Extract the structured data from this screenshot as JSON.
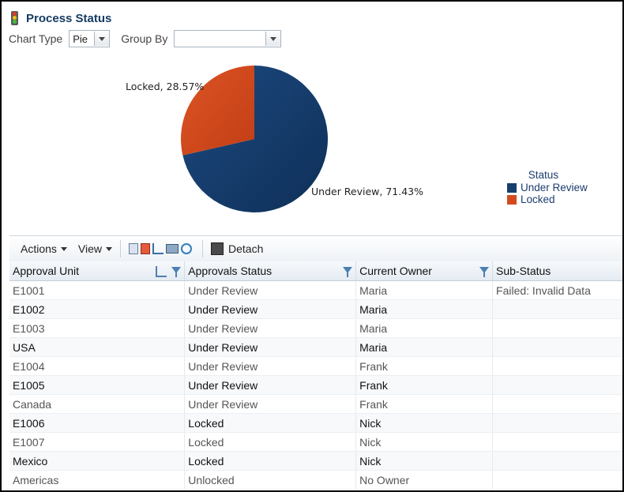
{
  "header": {
    "title": "Process Status",
    "icon": "traffic-light-icon"
  },
  "controls": {
    "chart_type_label": "Chart Type",
    "chart_type_value": "Pie",
    "group_by_label": "Group By",
    "group_by_value": ""
  },
  "chart_data": {
    "type": "pie",
    "categories": [
      "Under Review",
      "Locked"
    ],
    "values": [
      71.43,
      28.57
    ],
    "labels": [
      "Under Review, 71.43%",
      "Locked, 28.57%"
    ],
    "colors": [
      "#173f6e",
      "#d44a1f"
    ],
    "legend_title": "Status",
    "legend_position": "right"
  },
  "toolbar": {
    "actions_label": "Actions",
    "view_label": "View",
    "detach_label": "Detach"
  },
  "table": {
    "columns": [
      "Approval Unit",
      "Approvals Status",
      "Current Owner",
      "Sub-Status"
    ],
    "rows": [
      [
        "E1001",
        "Under Review",
        "Maria",
        "Failed: Invalid Data"
      ],
      [
        "E1002",
        "Under Review",
        "Maria",
        ""
      ],
      [
        "E1003",
        "Under Review",
        "Maria",
        ""
      ],
      [
        "USA",
        "Under Review",
        "Maria",
        ""
      ],
      [
        "E1004",
        "Under Review",
        "Frank",
        ""
      ],
      [
        "E1005",
        "Under Review",
        "Frank",
        ""
      ],
      [
        "Canada",
        "Under Review",
        "Frank",
        ""
      ],
      [
        "E1006",
        "Locked",
        "Nick",
        ""
      ],
      [
        "E1007",
        "Locked",
        "Nick",
        ""
      ],
      [
        "Mexico",
        "Locked",
        "Nick",
        ""
      ],
      [
        "Americas",
        "Unlocked",
        "No Owner",
        ""
      ]
    ]
  }
}
